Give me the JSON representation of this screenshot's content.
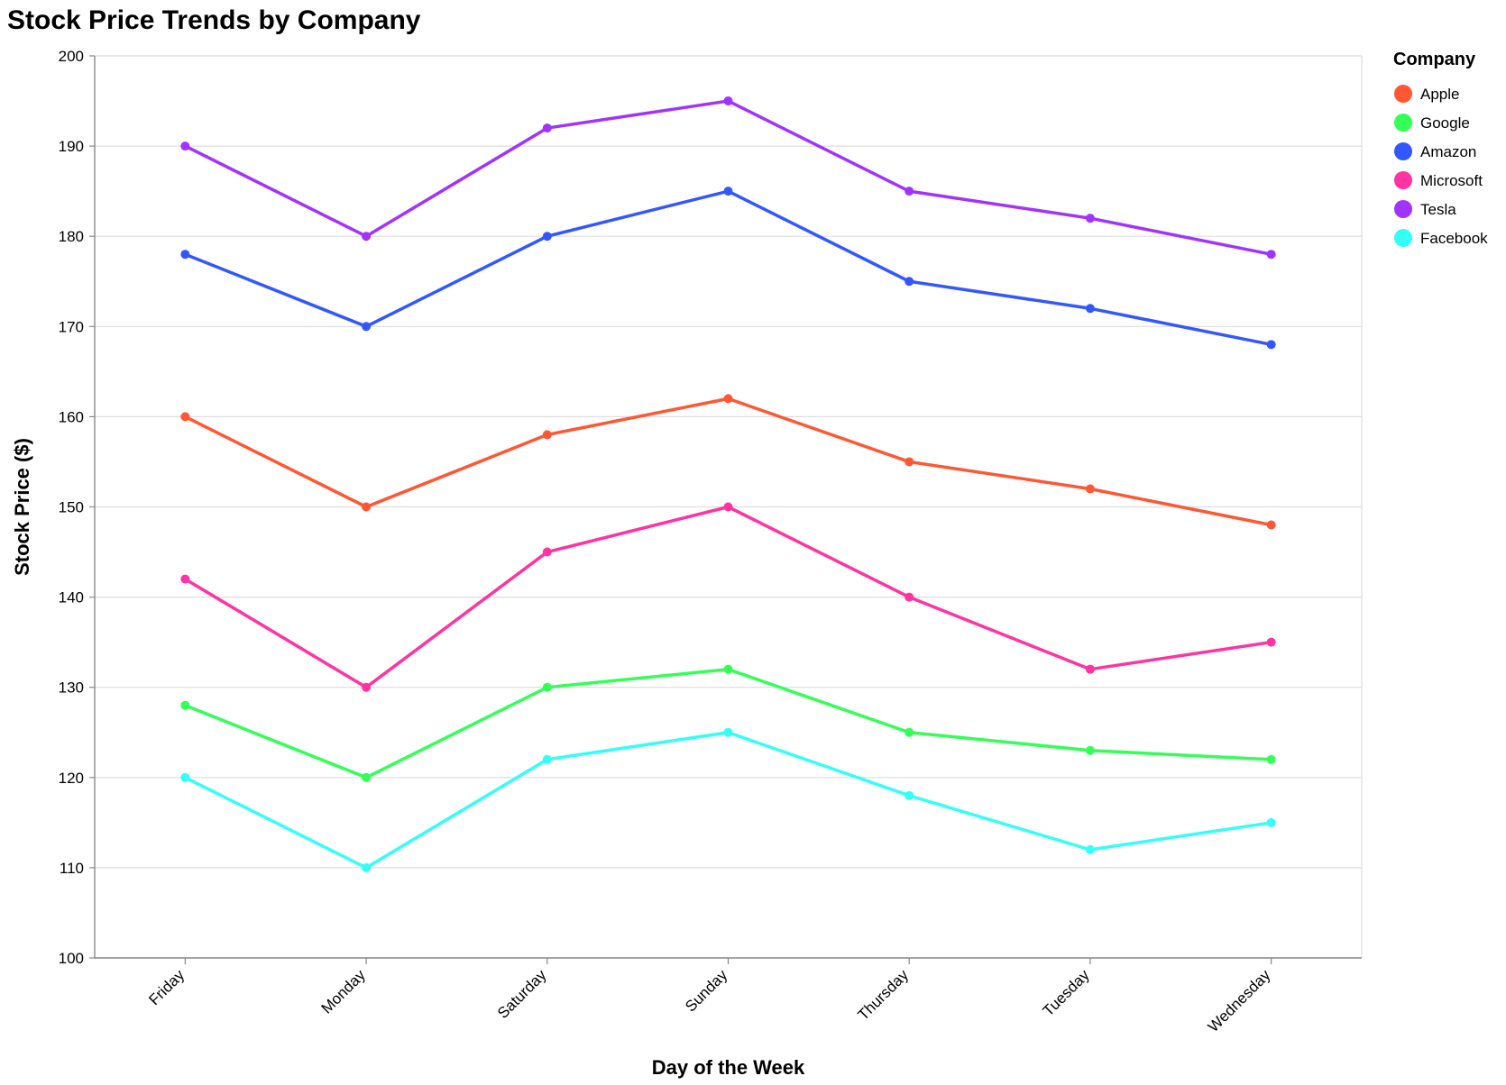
{
  "chart_data": {
    "type": "line",
    "title": "Stock Price Trends by Company",
    "xlabel": "Day of the Week",
    "ylabel": "Stock Price ($)",
    "categories": [
      "Friday",
      "Monday",
      "Saturday",
      "Sunday",
      "Thursday",
      "Tuesday",
      "Wednesday"
    ],
    "ylim": [
      100,
      200
    ],
    "yticks": [
      100,
      110,
      120,
      130,
      140,
      150,
      160,
      170,
      180,
      190,
      200
    ],
    "grid": true,
    "legend_title": "Company",
    "legend_position": "right",
    "series": [
      {
        "name": "Apple",
        "color": "#ff5733",
        "values": [
          160,
          150,
          158,
          162,
          155,
          152,
          148
        ]
      },
      {
        "name": "Google",
        "color": "#33ff57",
        "values": [
          128,
          120,
          130,
          132,
          125,
          123,
          122
        ]
      },
      {
        "name": "Amazon",
        "color": "#3357ff",
        "values": [
          178,
          170,
          180,
          185,
          175,
          172,
          168
        ]
      },
      {
        "name": "Microsoft",
        "color": "#ff33a1",
        "values": [
          142,
          130,
          145,
          150,
          140,
          132,
          135
        ]
      },
      {
        "name": "Tesla",
        "color": "#a133ff",
        "values": [
          190,
          180,
          192,
          195,
          185,
          182,
          178
        ]
      },
      {
        "name": "Facebook",
        "color": "#33fff6",
        "values": [
          120,
          110,
          122,
          125,
          118,
          112,
          115
        ]
      }
    ]
  }
}
